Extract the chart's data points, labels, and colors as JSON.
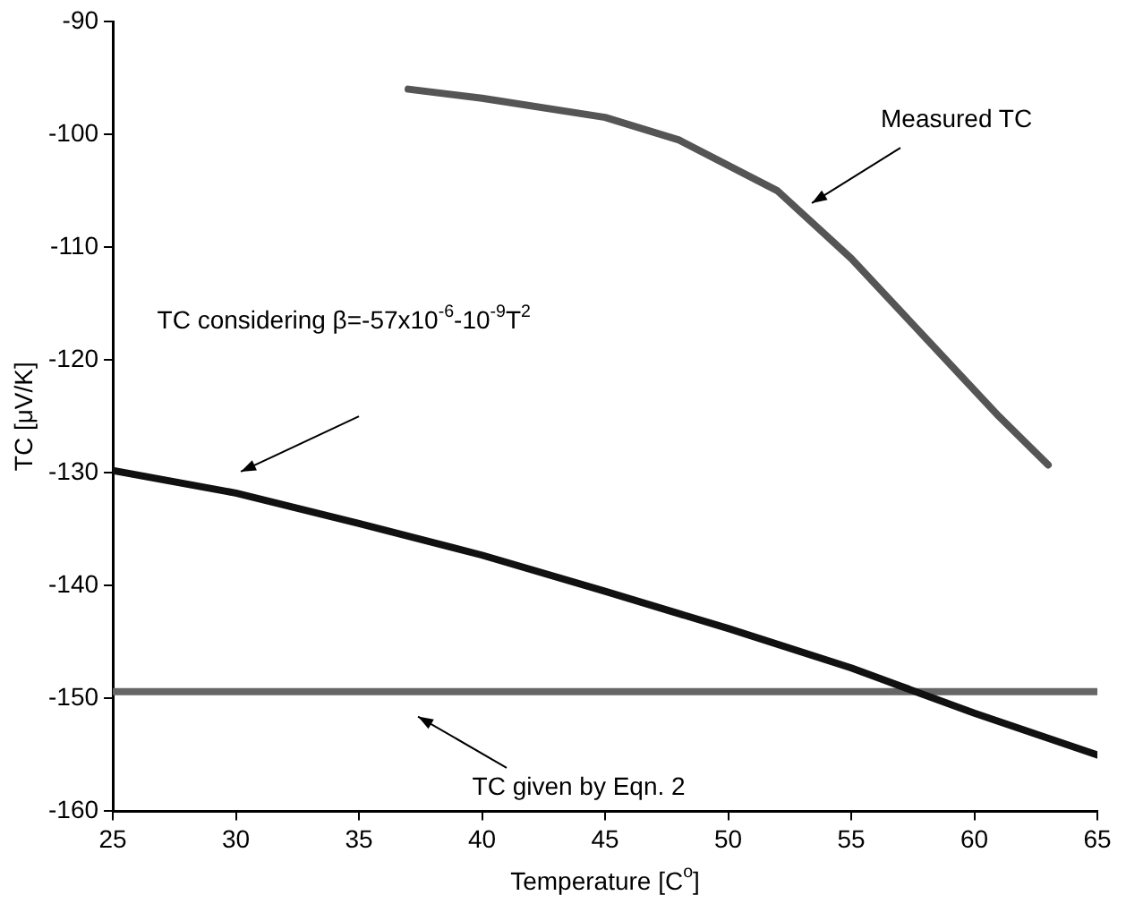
{
  "chart_data": {
    "type": "line",
    "xlabel": "Temperature [C$^{o}$]",
    "ylabel": "TC [μV/K]",
    "xlim": [
      25,
      65
    ],
    "xticks": [
      25,
      30,
      35,
      40,
      45,
      50,
      55,
      60,
      65
    ],
    "ylim": [
      -160,
      -90
    ],
    "yticks": [
      -160,
      -150,
      -140,
      -130,
      -120,
      -110,
      -100,
      -90
    ],
    "grid": false,
    "legend": false,
    "marker": "none",
    "line_style": "solid",
    "series": [
      {
        "color": "#555555",
        "x": [
          37,
          40,
          45,
          48,
          52,
          55,
          58,
          61,
          63
        ],
        "values": [
          -96,
          -96.8,
          -98.5,
          -100.5,
          -105,
          -111,
          -118,
          -125,
          -129.3
        ]
      },
      {
        "color": "#111111",
        "x": [
          25,
          30,
          35,
          40,
          45,
          50,
          55,
          60,
          65
        ],
        "values": [
          -129.8,
          -131.8,
          -134.5,
          -137.3,
          -140.5,
          -143.8,
          -147.3,
          -151.3,
          -155
        ]
      },
      {
        "color": "#666666",
        "x": [
          25,
          65
        ],
        "values": [
          -149.4,
          -149.4
        ]
      }
    ],
    "annotations": [
      "Measured TC",
      "TC considering β=-57x10$^{-6}$-10$^{-9}$T$^{2}$",
      "TC given by Eqn. 2"
    ]
  }
}
